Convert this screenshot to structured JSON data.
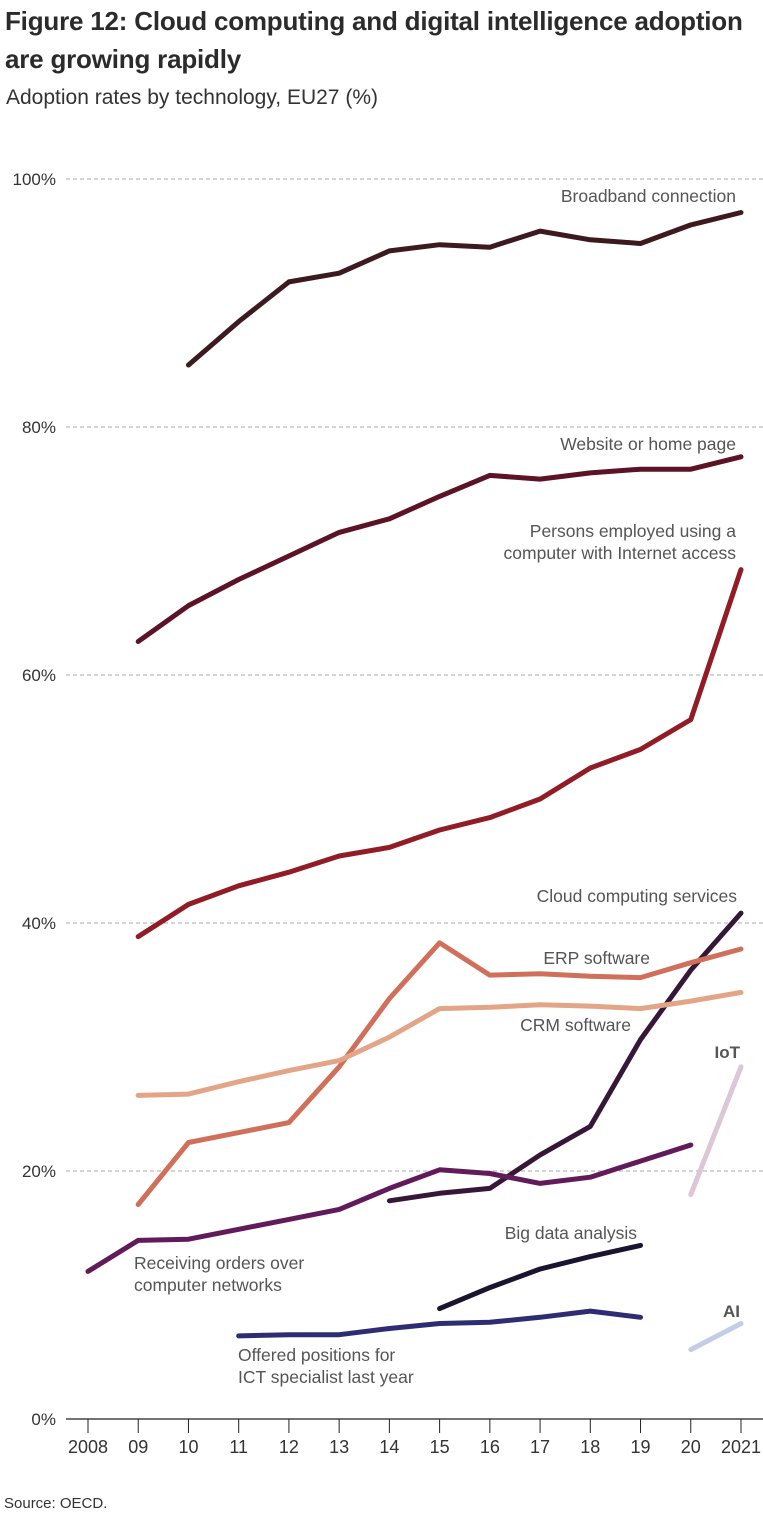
{
  "title": "Figure 12: Cloud computing and digital intelligence adoption are growing rapidly",
  "subtitle": "Adoption rates by technology, EU27 (%)",
  "source": "Source: OECD.",
  "chart_data": {
    "type": "line",
    "title": "Figure 12: Cloud computing and digital intelligence adoption are growing rapidly",
    "subtitle": "Adoption rates by technology, EU27 (%)",
    "xlabel": "",
    "ylabel": "",
    "x": [
      2008,
      2009,
      2010,
      2011,
      2012,
      2013,
      2014,
      2015,
      2016,
      2017,
      2018,
      2019,
      2020,
      2021
    ],
    "x_tick_labels": [
      "2008",
      "09",
      "10",
      "11",
      "12",
      "13",
      "14",
      "15",
      "16",
      "17",
      "18",
      "19",
      "20",
      "2021"
    ],
    "ylim": [
      0,
      100
    ],
    "y_ticks": [
      0,
      20,
      40,
      60,
      80,
      100
    ],
    "y_tick_labels": [
      "0%",
      "20%",
      "40%",
      "60%",
      "80%",
      "100%"
    ],
    "grid": true,
    "legend": "inline labels",
    "series": [
      {
        "name": "Broadband connection",
        "color": "#3d1a1f",
        "label_style": "normal",
        "x": [
          2010,
          2011,
          2012,
          2013,
          2014,
          2015,
          2016,
          2017,
          2018,
          2019,
          2020,
          2021
        ],
        "values": [
          85.0,
          88.5,
          91.7,
          92.4,
          94.2,
          94.7,
          94.5,
          95.8,
          95.1,
          94.8,
          96.3,
          97.3
        ]
      },
      {
        "name": "Website or home page",
        "color": "#5c1326",
        "label_style": "normal",
        "x": [
          2009,
          2010,
          2011,
          2012,
          2013,
          2014,
          2015,
          2016,
          2017,
          2018,
          2019,
          2020,
          2021
        ],
        "values": [
          62.7,
          65.6,
          67.7,
          69.6,
          71.5,
          72.6,
          74.4,
          76.1,
          75.8,
          76.3,
          76.6,
          76.6,
          77.6
        ]
      },
      {
        "name": "Persons employed using a computer with Internet access",
        "label_lines": [
          "Persons employed using a",
          "computer with Internet access"
        ],
        "color": "#921c26",
        "label_style": "normal",
        "x": [
          2009,
          2010,
          2011,
          2012,
          2013,
          2014,
          2015,
          2016,
          2017,
          2018,
          2019,
          2020,
          2021
        ],
        "values": [
          38.9,
          41.5,
          43.0,
          44.1,
          45.4,
          46.1,
          47.5,
          48.5,
          50.0,
          52.5,
          54.0,
          56.4,
          68.5
        ]
      },
      {
        "name": "Cloud computing services",
        "color": "#361738",
        "label_style": "normal",
        "x": [
          2014,
          2015,
          2016,
          2017,
          2018,
          2019,
          2020,
          2021
        ],
        "values": [
          17.6,
          18.2,
          18.6,
          21.3,
          23.6,
          30.6,
          36.2,
          40.8
        ]
      },
      {
        "name": "ERP software",
        "color": "#d1705a",
        "label_style": "normal",
        "x": [
          2009,
          2010,
          2011,
          2012,
          2013,
          2014,
          2015,
          2016,
          2017,
          2018,
          2019,
          2020,
          2021
        ],
        "values": [
          17.3,
          22.3,
          23.1,
          23.9,
          28.4,
          33.9,
          38.4,
          35.8,
          35.9,
          35.7,
          35.6,
          36.8,
          37.9
        ]
      },
      {
        "name": "CRM software",
        "color": "#e3a587",
        "label_style": "normal",
        "x": [
          2009,
          2010,
          2011,
          2012,
          2013,
          2014,
          2015,
          2016,
          2017,
          2018,
          2019,
          2020,
          2021
        ],
        "values": [
          26.1,
          26.2,
          27.2,
          28.1,
          28.9,
          30.8,
          33.1,
          33.2,
          33.4,
          33.3,
          33.1,
          33.7,
          34.4
        ]
      },
      {
        "name": "Receiving orders over computer networks",
        "label_lines": [
          "Receiving orders over",
          "computer networks"
        ],
        "color": "#611a5a",
        "label_style": "normal",
        "x": [
          2008,
          2009,
          2010,
          2011,
          2012,
          2013,
          2014,
          2015,
          2016,
          2017,
          2018,
          2019,
          2020
        ],
        "values": [
          11.9,
          14.4,
          14.5,
          15.3,
          16.1,
          16.9,
          18.6,
          20.1,
          19.8,
          19.0,
          19.5,
          20.8,
          22.1
        ]
      },
      {
        "name": "Big data analysis",
        "color": "#1b1430",
        "label_style": "normal",
        "x": [
          2015,
          2016,
          2017,
          2018,
          2019
        ],
        "values": [
          8.9,
          10.6,
          12.1,
          13.1,
          14.0
        ]
      },
      {
        "name": "Offered positions for ICT specialist last year",
        "label_lines": [
          "Offered positions for",
          "ICT specialist last year"
        ],
        "color": "#2e2d73",
        "label_style": "normal",
        "x": [
          2011,
          2012,
          2013,
          2014,
          2015,
          2016,
          2017,
          2018,
          2019
        ],
        "values": [
          6.7,
          6.8,
          6.8,
          7.3,
          7.7,
          7.8,
          8.2,
          8.7,
          8.2
        ]
      },
      {
        "name": "IoT",
        "color": "#dcc7d6",
        "label_color": "#5b1f58",
        "label_style": "bold",
        "x": [
          2020,
          2021
        ],
        "values": [
          18.1,
          28.4
        ]
      },
      {
        "name": "AI",
        "color": "#c5cde6",
        "label_color": "#2e2d73",
        "label_style": "bold",
        "x": [
          2020,
          2021
        ],
        "values": [
          5.6,
          7.7
        ]
      }
    ]
  }
}
